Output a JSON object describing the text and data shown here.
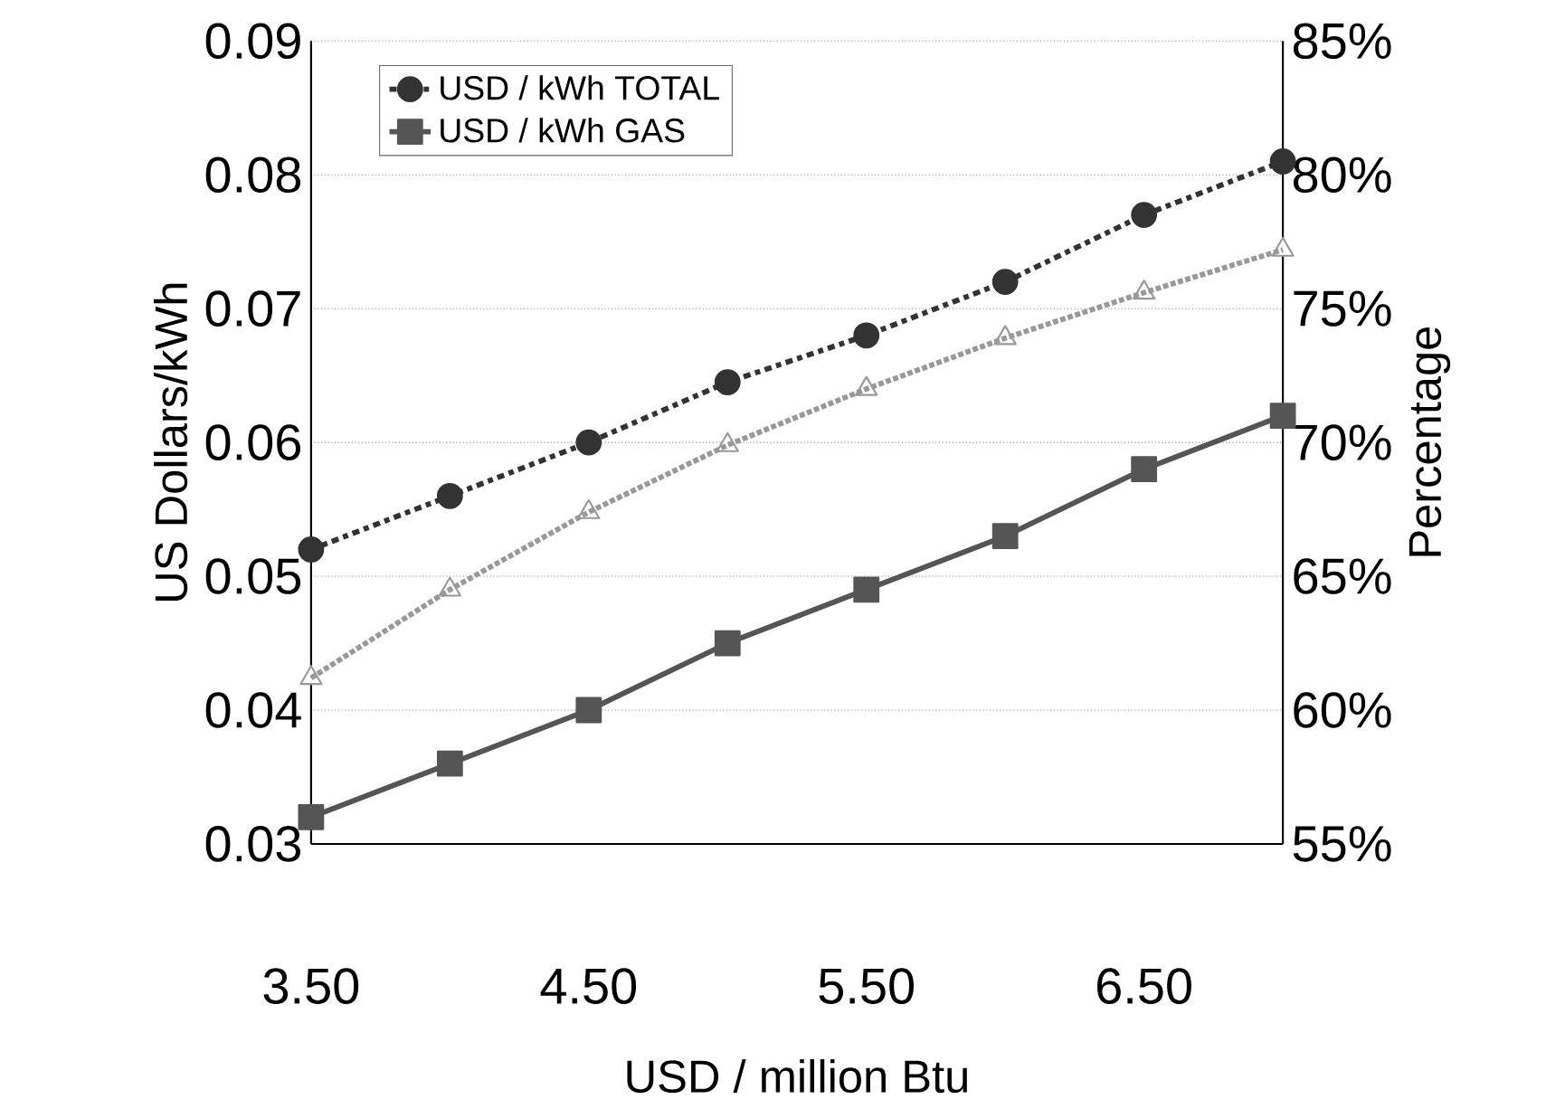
{
  "chart_data": {
    "type": "line",
    "xlabel": "USD / million Btu",
    "ylabel": "US Dollars/kWh",
    "y2label": "Percentage",
    "x": [
      3.5,
      4.0,
      4.5,
      5.0,
      5.5,
      6.0,
      6.5,
      7.0
    ],
    "xlim": [
      3.5,
      7.0
    ],
    "xticks": [
      {
        "value": 3.5,
        "label": "3.50"
      },
      {
        "value": 4.5,
        "label": "4.50"
      },
      {
        "value": 5.5,
        "label": "5.50"
      },
      {
        "value": 6.5,
        "label": "6.50"
      }
    ],
    "ylim": [
      0.03,
      0.09
    ],
    "yticks": [
      0.03,
      0.04,
      0.05,
      0.06,
      0.07,
      0.08,
      0.09
    ],
    "y2lim": [
      55,
      85
    ],
    "y2ticks": [
      {
        "value": 55,
        "label": "55%"
      },
      {
        "value": 60,
        "label": "60%"
      },
      {
        "value": 65,
        "label": "65%"
      },
      {
        "value": 70,
        "label": "70%"
      },
      {
        "value": 75,
        "label": "75%"
      },
      {
        "value": 80,
        "label": "80%"
      },
      {
        "value": 85,
        "label": "85%"
      }
    ],
    "grid": "y",
    "legend": "top left",
    "series": [
      {
        "name": "USD / kWh TOTAL",
        "color": "#333333",
        "marker": "circle",
        "line_style": "dashed",
        "values": [
          0.052,
          0.056,
          0.06,
          0.0645,
          0.068,
          0.072,
          0.077,
          0.081
        ]
      },
      {
        "name": "USD / kWh GAS",
        "color": "#555555",
        "marker": "square",
        "line_style": "solid",
        "values": [
          0.032,
          0.036,
          0.04,
          0.045,
          0.049,
          0.053,
          0.058,
          0.062
        ]
      },
      {
        "color": "#999999",
        "marker": "triangle",
        "line_style": "dotted",
        "axis": "y2",
        "values": [
          61.2,
          64.5,
          67.4,
          69.9,
          72.0,
          73.9,
          75.6,
          77.2
        ]
      }
    ]
  }
}
